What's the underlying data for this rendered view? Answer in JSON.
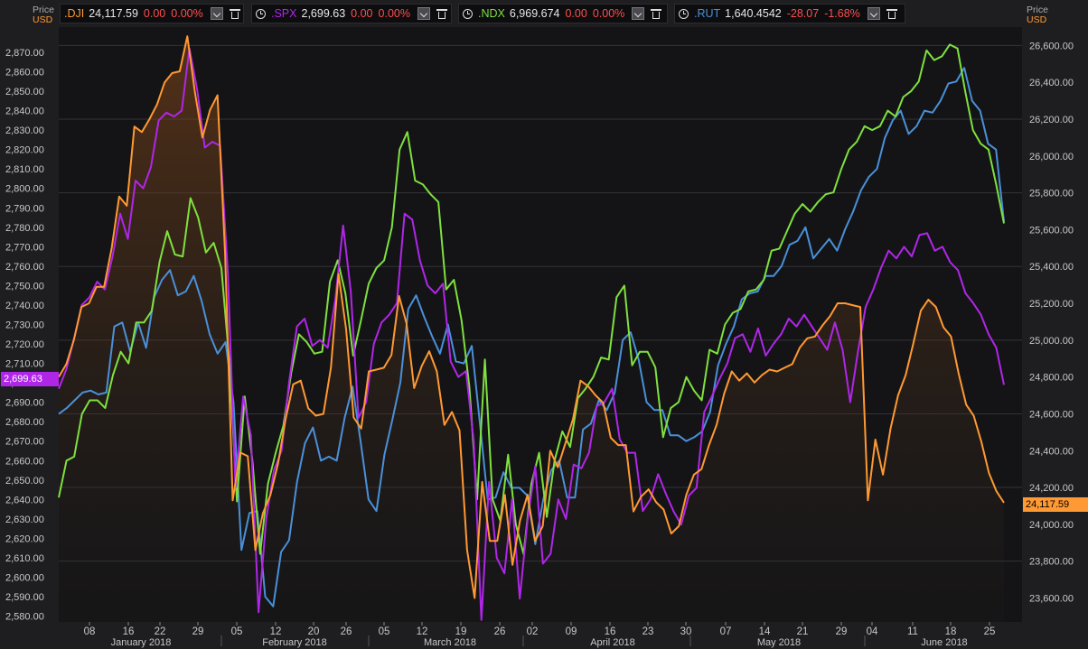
{
  "legend": [
    {
      "symbol": ".DJI",
      "value": "24,117.59",
      "change": "0.00",
      "pct": "0.00%",
      "color": "#ff9933",
      "clock": false
    },
    {
      "symbol": ".SPX",
      "value": "2,699.63",
      "change": "0.00",
      "pct": "0.00%",
      "color": "#b026e8",
      "clock": true
    },
    {
      "symbol": ".NDX",
      "value": "6,969.674",
      "change": "0.00",
      "pct": "0.00%",
      "color": "#7fe03f",
      "clock": true
    },
    {
      "symbol": ".RUT",
      "value": "1,640.4542",
      "change": "-28.07",
      "pct": "-1.68%",
      "color": "#4a90d9",
      "clock": true
    }
  ],
  "axes": {
    "left_title": "Price",
    "left_unit": "USD",
    "right_title": "Price",
    "right_unit": "USD"
  },
  "left_tag": "2,699.63",
  "right_tag": "24,117.59",
  "chart_data": {
    "type": "line",
    "left_axis": {
      "ylim": [
        2577,
        2883
      ],
      "ticks": [
        "2,580.00",
        "2,590.00",
        "2,600.00",
        "2,610.00",
        "2,620.00",
        "2,630.00",
        "2,640.00",
        "2,650.00",
        "2,660.00",
        "2,670.00",
        "2,680.00",
        "2,690.00",
        "2,700.00",
        "2,710.00",
        "2,720.00",
        "2,730.00",
        "2,740.00",
        "2,750.00",
        "2,760.00",
        "2,770.00",
        "2,780.00",
        "2,790.00",
        "2,800.00",
        "2,810.00",
        "2,820.00",
        "2,830.00",
        "2,840.00",
        "2,850.00",
        "2,860.00",
        "2,870.00"
      ]
    },
    "right_axis": {
      "ylim": [
        23470,
        26700
      ],
      "ticks": [
        "23,600.00",
        "23,800.00",
        "24,000.00",
        "24,200.00",
        "24,400.00",
        "24,600.00",
        "24,800.00",
        "25,000.00",
        "25,200.00",
        "25,400.00",
        "25,600.00",
        "25,800.00",
        "26,000.00",
        "26,200.00",
        "26,400.00",
        "26,600.00"
      ]
    },
    "x_ticks": [
      "08",
      "16",
      "22",
      "29",
      "05",
      "12",
      "20",
      "26",
      "05",
      "12",
      "19",
      "26",
      "02",
      "09",
      "16",
      "23",
      "30",
      "07",
      "14",
      "21",
      "29",
      "04",
      "11",
      "18",
      "25"
    ],
    "months": [
      "January 2018",
      "February 2018",
      "March 2018",
      "April 2018",
      "May 2018",
      "June 2018"
    ],
    "series": [
      {
        "name": ".RUT",
        "color": "#4a90d9",
        "axis": "left",
        "values": [
          2684,
          2687,
          2691,
          2695,
          2696,
          2694,
          2695,
          2729,
          2731,
          2716,
          2731,
          2718,
          2744,
          2753,
          2758,
          2745,
          2747,
          2755,
          2742,
          2725,
          2715,
          2721,
          2690,
          2614,
          2633,
          2634,
          2590,
          2585,
          2613,
          2619,
          2649,
          2669,
          2677,
          2660,
          2662,
          2660,
          2682,
          2698,
          2670,
          2640,
          2634,
          2663,
          2681,
          2700,
          2738,
          2745,
          2734,
          2724,
          2715,
          2730,
          2711,
          2710,
          2719,
          2680,
          2640,
          2641,
          2654,
          2646,
          2646,
          2642,
          2617,
          2640,
          2655,
          2660,
          2641,
          2641,
          2676,
          2679,
          2691,
          2686,
          2695,
          2722,
          2726,
          2712,
          2690,
          2686,
          2686,
          2673,
          2673,
          2670,
          2672,
          2675,
          2685,
          2709,
          2720,
          2729,
          2743,
          2746,
          2747,
          2755,
          2755,
          2760,
          2771,
          2773,
          2780,
          2764,
          2769,
          2774,
          2768,
          2779,
          2788,
          2799,
          2806,
          2810,
          2826,
          2835,
          2840,
          2828,
          2832,
          2840,
          2839,
          2845,
          2854,
          2855,
          2862,
          2845,
          2840,
          2823,
          2820,
          2783
        ]
      },
      {
        "name": ".NDX",
        "color": "#7fe03f",
        "axis": "left",
        "values": [
          2641,
          2660,
          2662,
          2684,
          2691,
          2691,
          2687,
          2704,
          2716,
          2710,
          2731,
          2731,
          2737,
          2762,
          2778,
          2766,
          2765,
          2795,
          2785,
          2767,
          2772,
          2759,
          2712,
          2639,
          2693,
          2660,
          2612,
          2648,
          2664,
          2678,
          2705,
          2725,
          2721,
          2715,
          2716,
          2752,
          2763,
          2746,
          2714,
          2732,
          2751,
          2759,
          2763,
          2780,
          2820,
          2829,
          2804,
          2802,
          2797,
          2793,
          2748,
          2753,
          2732,
          2698,
          2640,
          2712,
          2640,
          2629,
          2663,
          2627,
          2612,
          2648,
          2664,
          2631,
          2660,
          2675,
          2667,
          2692,
          2697,
          2703,
          2713,
          2712,
          2744,
          2750,
          2709,
          2716,
          2716,
          2708,
          2672,
          2687,
          2690,
          2703,
          2696,
          2691,
          2717,
          2715,
          2730,
          2736,
          2738,
          2747,
          2748,
          2753,
          2768,
          2769,
          2778,
          2787,
          2792,
          2788,
          2793,
          2797,
          2798,
          2810,
          2820,
          2824,
          2832,
          2830,
          2832,
          2840,
          2837,
          2847,
          2850,
          2855,
          2871,
          2866,
          2868,
          2874,
          2872,
          2850,
          2830,
          2823,
          2820,
          2802,
          2782
        ]
      },
      {
        "name": ".SPX",
        "color": "#b026e8",
        "axis": "left",
        "values": [
          2697,
          2707,
          2723,
          2740,
          2744,
          2752,
          2748,
          2765,
          2787,
          2774,
          2804,
          2800,
          2811,
          2835,
          2839,
          2837,
          2840,
          2872,
          2851,
          2821,
          2824,
          2822,
          2757,
          2646,
          2693,
          2673,
          2582,
          2630,
          2655,
          2665,
          2701,
          2729,
          2733,
          2719,
          2722,
          2718,
          2743,
          2781,
          2747,
          2682,
          2690,
          2720,
          2731,
          2735,
          2741,
          2787,
          2784,
          2763,
          2750,
          2746,
          2751,
          2711,
          2703,
          2706,
          2670,
          2578,
          2649,
          2610,
          2602,
          2640,
          2589,
          2629,
          2657,
          2607,
          2612,
          2640,
          2630,
          2658,
          2656,
          2664,
          2688,
          2690,
          2697,
          2671,
          2664,
          2664,
          2634,
          2640,
          2653,
          2643,
          2634,
          2627,
          2642,
          2646,
          2685,
          2693,
          2702,
          2710,
          2723,
          2725,
          2716,
          2728,
          2714,
          2720,
          2725,
          2733,
          2729,
          2735,
          2729,
          2723,
          2717,
          2731,
          2717,
          2690,
          2716,
          2739,
          2748,
          2759,
          2768,
          2764,
          2770,
          2765,
          2776,
          2777,
          2768,
          2770,
          2762,
          2758,
          2746,
          2741,
          2735,
          2725,
          2718,
          2699
        ]
      },
      {
        "name": ".DJI",
        "color": "#ff9933",
        "axis": "right",
        "values": [
          24800,
          24870,
          25000,
          25180,
          25200,
          25290,
          25290,
          25500,
          25780,
          25730,
          26160,
          26130,
          26200,
          26280,
          26400,
          26450,
          26460,
          26650,
          26350,
          26100,
          26250,
          26330,
          25470,
          24130,
          24390,
          24370,
          23860,
          24060,
          24160,
          24330,
          24570,
          24760,
          24780,
          24630,
          24590,
          24600,
          24850,
          25360,
          25060,
          24580,
          24520,
          24830,
          24840,
          24850,
          24920,
          25240,
          25090,
          24740,
          24860,
          24940,
          24830,
          24540,
          24610,
          24510,
          23860,
          23600,
          24230,
          23910,
          23910,
          24160,
          23780,
          24020,
          24160,
          23910,
          23990,
          24400,
          24310,
          24440,
          24570,
          24780,
          24750,
          24700,
          24660,
          24470,
          24430,
          24430,
          24070,
          24150,
          24190,
          24120,
          24080,
          23950,
          23990,
          24160,
          24270,
          24300,
          24430,
          24540,
          24710,
          24830,
          24780,
          24820,
          24770,
          24810,
          24840,
          24830,
          24850,
          24870,
          24960,
          25010,
          25020,
          25080,
          25130,
          25200,
          25200,
          25190,
          25180,
          24130,
          24460,
          24270,
          24520,
          24700,
          24810,
          24980,
          25160,
          25220,
          25180,
          25070,
          25020,
          24820,
          24650,
          24590,
          24450,
          24280,
          24180,
          24117
        ]
      }
    ]
  }
}
